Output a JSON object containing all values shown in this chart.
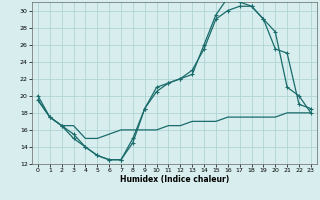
{
  "xlabel": "Humidex (Indice chaleur)",
  "xlim": [
    -0.5,
    23.5
  ],
  "ylim": [
    12,
    31
  ],
  "yticks": [
    12,
    14,
    16,
    18,
    20,
    22,
    24,
    26,
    28,
    30
  ],
  "xticks": [
    0,
    1,
    2,
    3,
    4,
    5,
    6,
    7,
    8,
    9,
    10,
    11,
    12,
    13,
    14,
    15,
    16,
    17,
    18,
    19,
    20,
    21,
    22,
    23
  ],
  "bg_color": "#d8eeee",
  "grid_color": "#b0d4d4",
  "line_color": "#1a6b6b",
  "line1_x": [
    0,
    1,
    2,
    3,
    4,
    5,
    6,
    7,
    8,
    9,
    10,
    11,
    12,
    13,
    14,
    15,
    16,
    17,
    18,
    19,
    20,
    21,
    22,
    23
  ],
  "line1_y": [
    20,
    17.5,
    16.5,
    15.5,
    14,
    13,
    12.5,
    12.5,
    15,
    18.5,
    21,
    21.5,
    22,
    22.5,
    26,
    29.5,
    31.5,
    31,
    30.5,
    29,
    25.5,
    25,
    19,
    18.5
  ],
  "line2_x": [
    0,
    1,
    2,
    3,
    4,
    5,
    6,
    7,
    8,
    9,
    10,
    11,
    12,
    13,
    14,
    15,
    16,
    17,
    18,
    19,
    20,
    21,
    22,
    23
  ],
  "line2_y": [
    19.5,
    17.5,
    16.5,
    15,
    14,
    13,
    12.5,
    12.5,
    14.5,
    18.5,
    20.5,
    21.5,
    22,
    23,
    25.5,
    29,
    30,
    30.5,
    30.5,
    29,
    27.5,
    21,
    20,
    18
  ],
  "line3_x": [
    0,
    1,
    2,
    3,
    4,
    5,
    6,
    7,
    8,
    9,
    10,
    11,
    12,
    13,
    14,
    15,
    16,
    17,
    18,
    19,
    20,
    21,
    22,
    23
  ],
  "line3_y": [
    19.5,
    17.5,
    16.5,
    16.5,
    15,
    15,
    15.5,
    16,
    16,
    16,
    16,
    16.5,
    16.5,
    17,
    17,
    17,
    17.5,
    17.5,
    17.5,
    17.5,
    17.5,
    18,
    18,
    18
  ]
}
